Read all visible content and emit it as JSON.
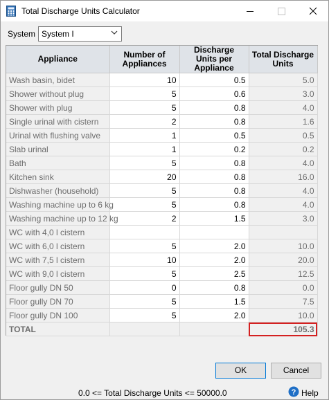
{
  "window": {
    "title": "Total Discharge Units Calculator"
  },
  "system": {
    "label": "System",
    "value": "System I"
  },
  "table": {
    "headers": [
      "Appliance",
      "Number of Appliances",
      "Discharge Units per Appliance",
      "Total Discharge Units"
    ],
    "rows": [
      [
        "Wash basin, bidet",
        "10",
        "0.5",
        "5.0"
      ],
      [
        "Shower without plug",
        "5",
        "0.6",
        "3.0"
      ],
      [
        "Shower with plug",
        "5",
        "0.8",
        "4.0"
      ],
      [
        "Single urinal with cistern",
        "2",
        "0.8",
        "1.6"
      ],
      [
        "Urinal with flushing valve",
        "1",
        "0.5",
        "0.5"
      ],
      [
        "Slab urinal",
        "1",
        "0.2",
        "0.2"
      ],
      [
        "Bath",
        "5",
        "0.8",
        "4.0"
      ],
      [
        "Kitchen sink",
        "20",
        "0.8",
        "16.0"
      ],
      [
        "Dishwasher (household)",
        "5",
        "0.8",
        "4.0"
      ],
      [
        "Washing machine up to 6 kg",
        "5",
        "0.8",
        "4.0"
      ],
      [
        "Washing machine up to 12 kg",
        "2",
        "1.5",
        "3.0"
      ],
      [
        "WC with 4,0 l cistern",
        "",
        "",
        ""
      ],
      [
        "WC with 6,0 l cistern",
        "5",
        "2.0",
        "10.0"
      ],
      [
        "WC with 7,5 l cistern",
        "10",
        "2.0",
        "20.0"
      ],
      [
        "WC with 9,0 l cistern",
        "5",
        "2.5",
        "12.5"
      ],
      [
        "Floor gully DN 50",
        "0",
        "0.8",
        "0.0"
      ],
      [
        "Floor gully DN 70",
        "5",
        "1.5",
        "7.5"
      ],
      [
        "Floor gully DN 100",
        "5",
        "2.0",
        "10.0"
      ]
    ],
    "total_label": "TOTAL",
    "total_value": "105.3"
  },
  "buttons": {
    "ok": "OK",
    "cancel": "Cancel"
  },
  "status": {
    "range_text": "0.0 <= Total Discharge Units <= 50000.0",
    "help_label": "Help"
  },
  "colors": {
    "highlight": "#d42020",
    "header_bg": "#dfe3e8",
    "accent": "#0078d7"
  }
}
